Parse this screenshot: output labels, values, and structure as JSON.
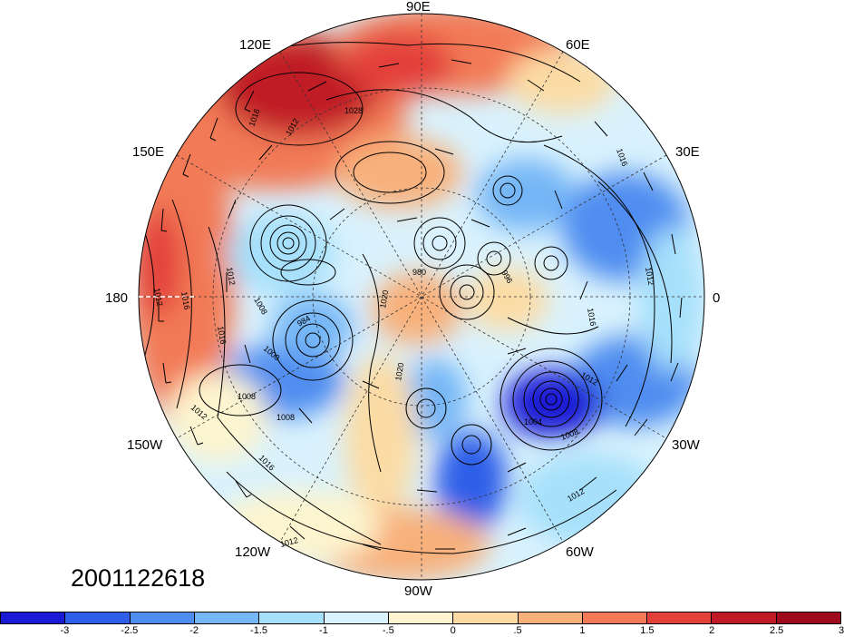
{
  "timestamp": "2001122618",
  "longitude_labels": {
    "lon_90e": "90E",
    "lon_120e": "120E",
    "lon_60e": "60E",
    "lon_150e": "150E",
    "lon_30e": "30E",
    "lon_180": "180",
    "lon_0": "0",
    "lon_150w": "150W",
    "lon_30w": "30W",
    "lon_120w": "120W",
    "lon_60w": "60W",
    "lon_90w": "90W"
  },
  "contour_labels": [
    "1016",
    "1012",
    "1028",
    "1020",
    "1016",
    "1012",
    "1016",
    "1012",
    "1008",
    "984",
    "1000",
    "1008",
    "1012",
    "1008",
    "1016",
    "1012",
    "1020",
    "1004",
    "1008",
    "1012",
    "1012",
    "1016",
    "1012",
    "1016",
    "996",
    "980"
  ],
  "colorbar": {
    "colors": [
      "#1a1ad6",
      "#2f5fe8",
      "#4f8df0",
      "#74b6f6",
      "#a6e0fb",
      "#d9f2fd",
      "#fdf5cf",
      "#fcdca4",
      "#f8b07a",
      "#f27a56",
      "#e3413a",
      "#c01a28",
      "#9e0b1c"
    ],
    "ticks": [
      "-3",
      "-2.5",
      "-2",
      "-1.5",
      "-1",
      "-.5",
      "0",
      ".5",
      "1",
      "1.5",
      "2",
      "2.5",
      "3"
    ]
  }
}
